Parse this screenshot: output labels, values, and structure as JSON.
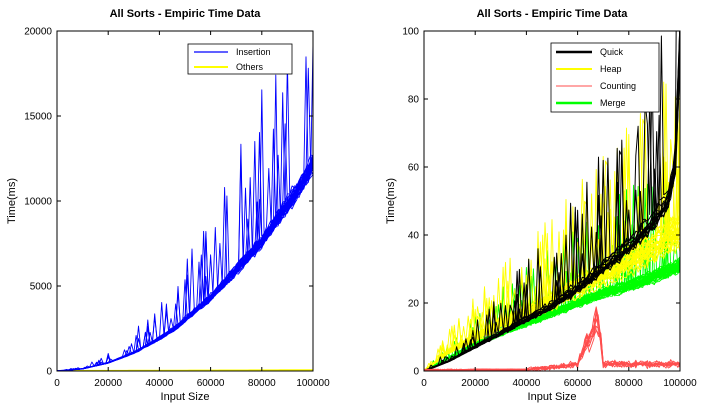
{
  "chart_data": [
    {
      "type": "line",
      "title": "All Sorts - Empiric Time Data",
      "xlabel": "Input Size",
      "ylabel": "Time(ms)",
      "xlim": [
        0,
        100000
      ],
      "ylim": [
        0,
        20000
      ],
      "xticks": [
        "0",
        "20000",
        "40000",
        "60000",
        "80000",
        "100000"
      ],
      "yticks": [
        "0",
        "5000",
        "10000",
        "15000",
        "20000"
      ],
      "grid": false,
      "legend_position": "top-right",
      "series": [
        {
          "name": "Insertion",
          "color": "#0000ff",
          "x": [
            0,
            10000,
            20000,
            30000,
            40000,
            47000,
            50000,
            60000,
            70000,
            80000,
            90000,
            95000,
            98000,
            100000
          ],
          "y": [
            0,
            130,
            480,
            1070,
            1900,
            2600,
            3000,
            4300,
            5900,
            7600,
            9700,
            10800,
            11600,
            12200
          ]
        },
        {
          "name": "Others",
          "color": "#ffff00",
          "x": [
            0,
            20000,
            40000,
            60000,
            80000,
            100000
          ],
          "y": [
            0,
            5,
            15,
            25,
            35,
            45
          ]
        }
      ]
    },
    {
      "type": "line",
      "title": "All Sorts - Empiric Time Data",
      "xlabel": "Input Size",
      "ylabel": "Time(ms)",
      "xlim": [
        0,
        100000
      ],
      "ylim": [
        0,
        100
      ],
      "xticks": [
        "0",
        "20000",
        "40000",
        "60000",
        "80000",
        "100000"
      ],
      "yticks": [
        "0",
        "20",
        "40",
        "60",
        "80",
        "100"
      ],
      "grid": false,
      "legend_position": "top-right",
      "series": [
        {
          "name": "Quick",
          "color": "#000000",
          "x": [
            0,
            10000,
            20000,
            30000,
            40000,
            50000,
            60000,
            70000,
            80000,
            90000,
            95000,
            98000,
            100000
          ],
          "y": [
            0,
            3,
            7,
            11,
            15,
            19,
            24,
            30,
            36,
            44,
            49,
            58,
            95
          ]
        },
        {
          "name": "Heap",
          "color": "#ffff00",
          "x": [
            0,
            10000,
            20000,
            30000,
            40000,
            50000,
            60000,
            70000,
            80000,
            90000,
            100000
          ],
          "y": [
            0,
            6,
            10,
            14,
            17,
            21,
            25,
            29,
            33,
            37,
            42
          ]
        },
        {
          "name": "Counting",
          "color": "#ff4d4d",
          "x": [
            0,
            20000,
            40000,
            50000,
            60000,
            68000,
            70000,
            80000,
            90000,
            100000
          ],
          "y": [
            0,
            0.5,
            0.5,
            1,
            2,
            16,
            2,
            2,
            2,
            2
          ]
        },
        {
          "name": "Merge",
          "color": "#00ff00",
          "x": [
            0,
            10000,
            20000,
            30000,
            40000,
            50000,
            60000,
            70000,
            80000,
            90000,
            100000
          ],
          "y": [
            0,
            4,
            8,
            11,
            14,
            17,
            20,
            23,
            25,
            28,
            31
          ]
        }
      ]
    }
  ]
}
